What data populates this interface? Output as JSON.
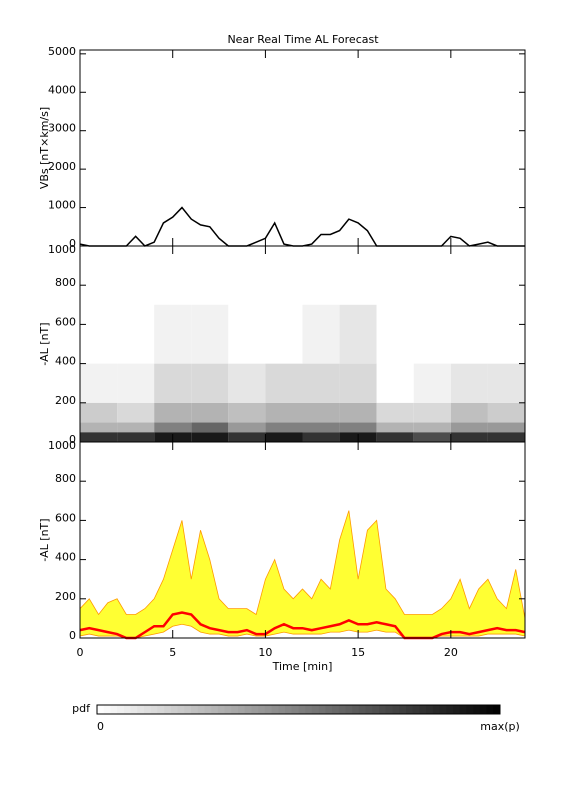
{
  "chart_data": [
    {
      "type": "line",
      "title": "Near Real Time AL Forecast",
      "ylabel": "VBs [nT×km/s]",
      "x": [
        0,
        0.5,
        1,
        1.5,
        2,
        2.5,
        3,
        3.5,
        4,
        4.5,
        5,
        5.5,
        6,
        6.5,
        7,
        7.5,
        8,
        8.5,
        9,
        9.5,
        10,
        10.5,
        11,
        11.5,
        12,
        12.5,
        13,
        13.5,
        14,
        14.5,
        15,
        15.5,
        16,
        16.5,
        17,
        17.5,
        18,
        18.5,
        19,
        19.5,
        20,
        20.5,
        21,
        21.5,
        22,
        22.5,
        23,
        23.5,
        24
      ],
      "series": [
        {
          "color": "#000000",
          "values": [
            50,
            0,
            0,
            0,
            0,
            0,
            250,
            0,
            100,
            600,
            750,
            1000,
            700,
            550,
            500,
            200,
            0,
            0,
            0,
            100,
            200,
            600,
            50,
            0,
            0,
            50,
            300,
            300,
            400,
            700,
            600,
            400,
            0,
            0,
            0,
            0,
            0,
            0,
            0,
            0,
            250,
            200,
            0,
            50,
            100,
            0,
            0,
            0,
            0
          ]
        }
      ],
      "xlim": [
        0,
        24
      ],
      "ylim": [
        0,
        5100
      ],
      "yticks": [
        0,
        1000,
        2000,
        3000,
        4000,
        5000
      ]
    },
    {
      "type": "heatmap",
      "ylabel": "-AL [nT]",
      "xbins": [
        0,
        2,
        4,
        6,
        8,
        10,
        12,
        14,
        16,
        18,
        20,
        22,
        24
      ],
      "ybins": [
        0,
        50,
        100,
        200,
        400,
        700
      ],
      "z": [
        [
          0.8,
          0.8,
          0.9,
          0.9,
          0.8,
          0.9,
          0.8,
          0.9,
          0.8,
          0.7,
          0.8,
          0.8
        ],
        [
          0.3,
          0.3,
          0.5,
          0.6,
          0.4,
          0.5,
          0.5,
          0.5,
          0.3,
          0.3,
          0.4,
          0.4
        ],
        [
          0.2,
          0.15,
          0.3,
          0.3,
          0.25,
          0.3,
          0.3,
          0.3,
          0.15,
          0.15,
          0.25,
          0.2
        ],
        [
          0.05,
          0.05,
          0.15,
          0.15,
          0.1,
          0.15,
          0.15,
          0.15,
          0,
          0.05,
          0.1,
          0.1
        ],
        [
          0,
          0,
          0.05,
          0.05,
          0,
          0,
          0.05,
          0.1,
          0,
          0,
          0,
          0
        ]
      ],
      "xlim": [
        0,
        24
      ],
      "ylim": [
        0,
        1000
      ],
      "yticks": [
        0,
        200,
        400,
        600,
        800,
        1000
      ],
      "colorbar": {
        "label": "pdf",
        "zlim": [
          0,
          1
        ],
        "ticks": [
          0,
          {
            "value": 1,
            "label": "max(p)"
          }
        ]
      }
    },
    {
      "type": "band",
      "ylabel": "-AL [nT]",
      "xlabel": "Time [min]",
      "x": [
        0,
        0.5,
        1,
        1.5,
        2,
        2.5,
        3,
        3.5,
        4,
        4.5,
        5,
        5.5,
        6,
        6.5,
        7,
        7.5,
        8,
        8.5,
        9,
        9.5,
        10,
        10.5,
        11,
        11.5,
        12,
        12.5,
        13,
        13.5,
        14,
        14.5,
        15,
        15.5,
        16,
        16.5,
        17,
        17.5,
        18,
        18.5,
        19,
        19.5,
        20,
        20.5,
        21,
        21.5,
        22,
        22.5,
        23,
        23.5,
        24
      ],
      "upper": {
        "color": "#ff9900",
        "fill": "#ffff33",
        "values": [
          150,
          200,
          120,
          180,
          200,
          120,
          120,
          150,
          200,
          300,
          450,
          600,
          300,
          550,
          400,
          200,
          150,
          150,
          150,
          120,
          300,
          400,
          250,
          200,
          250,
          200,
          300,
          250,
          500,
          650,
          300,
          550,
          600,
          250,
          200,
          120,
          120,
          120,
          120,
          150,
          200,
          300,
          150,
          250,
          300,
          200,
          150,
          350,
          100
        ]
      },
      "lower": {
        "color": "#ff9900",
        "values": [
          10,
          20,
          10,
          10,
          10,
          0,
          0,
          10,
          20,
          30,
          60,
          70,
          60,
          30,
          20,
          20,
          10,
          10,
          20,
          10,
          10,
          20,
          30,
          20,
          20,
          20,
          20,
          30,
          30,
          40,
          30,
          30,
          40,
          30,
          30,
          0,
          0,
          0,
          0,
          10,
          10,
          10,
          10,
          10,
          20,
          20,
          20,
          20,
          10
        ]
      },
      "median": {
        "color": "#ff0000",
        "values": [
          40,
          50,
          40,
          30,
          20,
          0,
          0,
          30,
          60,
          60,
          120,
          130,
          120,
          70,
          50,
          40,
          30,
          30,
          40,
          20,
          20,
          50,
          70,
          50,
          50,
          40,
          50,
          60,
          70,
          90,
          70,
          70,
          80,
          70,
          60,
          0,
          0,
          0,
          0,
          20,
          30,
          30,
          20,
          30,
          40,
          50,
          40,
          40,
          30
        ]
      },
      "xlim": [
        0,
        24
      ],
      "xticks": [
        0,
        5,
        10,
        15,
        20
      ],
      "ylim": [
        0,
        1000
      ],
      "yticks": [
        0,
        200,
        400,
        600,
        800,
        1000
      ]
    }
  ]
}
